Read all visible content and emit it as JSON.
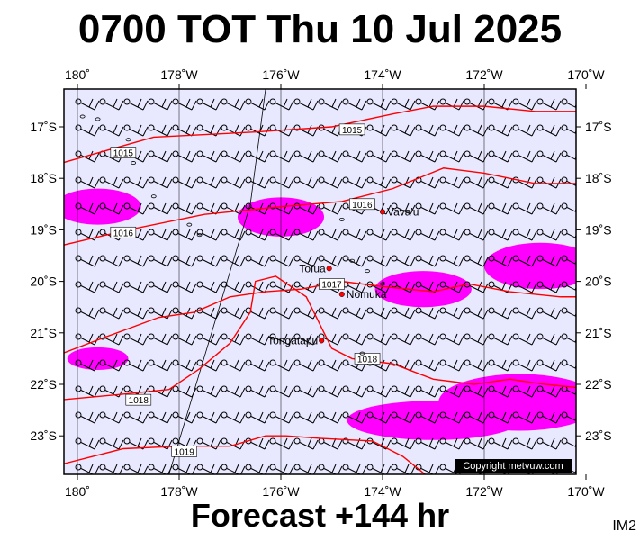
{
  "header": {
    "title": "0700 TOT Thu 10 Jul 2025"
  },
  "footer": {
    "subtitle": "Forecast +144 hr",
    "code": "IM2"
  },
  "copyright": "Copyright metvuw.com",
  "axes": {
    "lon_ticks": [
      {
        "lon": 180,
        "label": "180˚"
      },
      {
        "lon": -178,
        "label": "178˚W"
      },
      {
        "lon": -176,
        "label": "176˚W"
      },
      {
        "lon": -174,
        "label": "174˚W"
      },
      {
        "lon": -172,
        "label": "172˚W"
      },
      {
        "lon": -170,
        "label": "170˚W"
      }
    ],
    "lat_ticks": [
      {
        "lat": -17,
        "label": "17˚S"
      },
      {
        "lat": -18,
        "label": "18˚S"
      },
      {
        "lat": -19,
        "label": "19˚S"
      },
      {
        "lat": -20,
        "label": "20˚S"
      },
      {
        "lat": -21,
        "label": "21˚S"
      },
      {
        "lat": -22,
        "label": "22˚S"
      },
      {
        "lat": -23,
        "label": "23˚S"
      }
    ]
  },
  "places": [
    {
      "name": "Vava'u",
      "lon": -174.0,
      "lat": -18.65
    },
    {
      "name": "Tofua",
      "lon": -175.05,
      "lat": -19.75
    },
    {
      "name": "Nomuka",
      "lon": -174.8,
      "lat": -20.25
    },
    {
      "name": "Tongatapu",
      "lon": -175.2,
      "lat": -21.15
    }
  ],
  "isobars": [
    {
      "label": "1015",
      "label_pos": [
        -179.1,
        -17.5
      ],
      "label2": "1015",
      "label2_pos": [
        -174.6,
        -17.05
      ],
      "points": [
        [
          -180.3,
          -17.7
        ],
        [
          -178.5,
          -17.2
        ],
        [
          -176.5,
          -17.1
        ],
        [
          -175,
          -17.0
        ],
        [
          -173.8,
          -16.75
        ],
        [
          -173,
          -16.6
        ],
        [
          -172,
          -16.6
        ],
        [
          -171,
          -16.7
        ],
        [
          -169.8,
          -16.7
        ]
      ]
    },
    {
      "label": "1016",
      "label_pos": [
        -179.1,
        -19.05
      ],
      "label2": "1016",
      "label2_pos": [
        -174.4,
        -18.5
      ],
      "points": [
        [
          -180.3,
          -19.3
        ],
        [
          -179,
          -19.0
        ],
        [
          -177.5,
          -18.7
        ],
        [
          -176,
          -18.55
        ],
        [
          -174.8,
          -18.45
        ],
        [
          -173.8,
          -18.2
        ],
        [
          -172.8,
          -17.8
        ],
        [
          -172,
          -17.9
        ],
        [
          -171,
          -18.1
        ],
        [
          -169.8,
          -18.1
        ]
      ]
    },
    {
      "label": "1017",
      "label_pos": [
        -175.0,
        -20.05
      ],
      "points": [
        [
          -180.3,
          -21.4
        ],
        [
          -179.5,
          -21.1
        ],
        [
          -178.4,
          -20.7
        ],
        [
          -177.7,
          -20.6
        ],
        [
          -177,
          -20.3
        ],
        [
          -176.3,
          -20.2
        ],
        [
          -175.6,
          -20.15
        ],
        [
          -174.8,
          -20.0
        ],
        [
          -174,
          -20.1
        ],
        [
          -173,
          -20.2
        ],
        [
          -172.3,
          -20.05
        ],
        [
          -171.5,
          -20.2
        ],
        [
          -170.5,
          -20.3
        ],
        [
          -169.8,
          -20.3
        ]
      ]
    },
    {
      "label": "1018",
      "label_pos": [
        -178.8,
        -22.3
      ],
      "label2": "1018",
      "label2_pos": [
        -174.3,
        -21.5
      ],
      "points": [
        [
          -180.3,
          -22.3
        ],
        [
          -179.2,
          -22.2
        ],
        [
          -178.2,
          -22.1
        ],
        [
          -177.6,
          -21.7
        ],
        [
          -177,
          -21.2
        ],
        [
          -176.6,
          -20.6
        ],
        [
          -176.5,
          -20.0
        ],
        [
          -176.1,
          -19.9
        ],
        [
          -175.5,
          -20.3
        ],
        [
          -175,
          -21.3
        ],
        [
          -174.6,
          -21.5
        ],
        [
          -173.8,
          -21.6
        ],
        [
          -173,
          -21.9
        ],
        [
          -172.2,
          -22.0
        ],
        [
          -171.5,
          -21.9
        ],
        [
          -170.8,
          -22.0
        ],
        [
          -169.8,
          -22.1
        ]
      ]
    },
    {
      "label": "1019",
      "label_pos": [
        -177.9,
        -23.3
      ],
      "points": [
        [
          -180.3,
          -23.55
        ],
        [
          -179.1,
          -23.25
        ],
        [
          -178,
          -23.2
        ],
        [
          -177,
          -23.2
        ],
        [
          -176.3,
          -23.0
        ],
        [
          -175.9,
          -23.0
        ],
        [
          -175.2,
          -23.05
        ],
        [
          -174.2,
          -23.1
        ],
        [
          -173.6,
          -23.4
        ],
        [
          -173.1,
          -23.8
        ]
      ]
    }
  ],
  "rain_areas": [
    {
      "cx": -179.6,
      "cy": -18.55,
      "rx": 0.85,
      "ry": 0.35
    },
    {
      "cx": -176.0,
      "cy": -18.75,
      "rx": 0.85,
      "ry": 0.38
    },
    {
      "cx": -170.9,
      "cy": -19.7,
      "rx": 1.1,
      "ry": 0.45
    },
    {
      "cx": -173.2,
      "cy": -20.15,
      "rx": 0.95,
      "ry": 0.35
    },
    {
      "cx": -179.6,
      "cy": -21.5,
      "rx": 0.6,
      "ry": 0.22
    },
    {
      "cx": -171.3,
      "cy": -22.35,
      "rx": 1.6,
      "ry": 0.55
    },
    {
      "cx": -173.0,
      "cy": -22.7,
      "rx": 1.7,
      "ry": 0.38
    }
  ],
  "colors": {
    "ocean": "#e8e8ff",
    "isobar": "#ff0000",
    "rain": "#ff00ff",
    "town": "#ff0000"
  }
}
